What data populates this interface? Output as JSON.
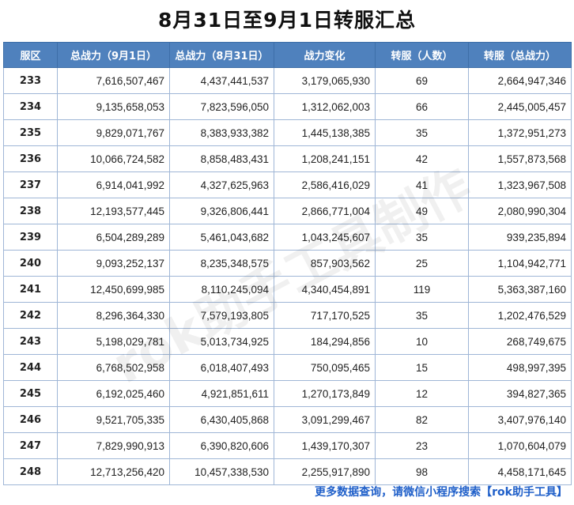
{
  "title": "8月31日至9月1日转服汇总",
  "table": {
    "headers": [
      "服区",
      "总战力（9月1日）",
      "总战力（8月31日）",
      "战力变化",
      "转服（人数）",
      "转服（总战力）"
    ],
    "rows": [
      [
        "233",
        "7,616,507,467",
        "4,437,441,537",
        "3,179,065,930",
        "69",
        "2,664,947,346"
      ],
      [
        "234",
        "9,135,658,053",
        "7,823,596,050",
        "1,312,062,003",
        "66",
        "2,445,005,457"
      ],
      [
        "235",
        "9,829,071,767",
        "8,383,933,382",
        "1,445,138,385",
        "35",
        "1,372,951,273"
      ],
      [
        "236",
        "10,066,724,582",
        "8,858,483,431",
        "1,208,241,151",
        "42",
        "1,557,873,568"
      ],
      [
        "237",
        "6,914,041,992",
        "4,327,625,963",
        "2,586,416,029",
        "41",
        "1,323,967,508"
      ],
      [
        "238",
        "12,193,577,445",
        "9,326,806,441",
        "2,866,771,004",
        "49",
        "2,080,990,304"
      ],
      [
        "239",
        "6,504,289,289",
        "5,461,043,682",
        "1,043,245,607",
        "35",
        "939,235,894"
      ],
      [
        "240",
        "9,093,252,137",
        "8,235,348,575",
        "857,903,562",
        "25",
        "1,104,942,771"
      ],
      [
        "241",
        "12,450,699,985",
        "8,110,245,094",
        "4,340,454,891",
        "119",
        "5,363,387,160"
      ],
      [
        "242",
        "8,296,364,330",
        "7,579,193,805",
        "717,170,525",
        "35",
        "1,202,476,529"
      ],
      [
        "243",
        "5,198,029,781",
        "5,013,734,925",
        "184,294,856",
        "10",
        "268,749,675"
      ],
      [
        "244",
        "6,768,502,958",
        "6,018,407,493",
        "750,095,465",
        "15",
        "498,997,395"
      ],
      [
        "245",
        "6,192,025,460",
        "4,921,851,611",
        "1,270,173,849",
        "12",
        "394,827,365"
      ],
      [
        "246",
        "9,521,705,335",
        "6,430,405,868",
        "3,091,299,467",
        "82",
        "3,407,976,140"
      ],
      [
        "247",
        "7,829,990,913",
        "6,390,820,606",
        "1,439,170,307",
        "23",
        "1,070,604,079"
      ],
      [
        "248",
        "12,713,256,420",
        "10,457,338,530",
        "2,255,917,890",
        "98",
        "4,458,171,645"
      ]
    ]
  },
  "watermark": "rok助手工具制作",
  "footer": "更多数据查询，请微信小程序搜索【rok助手工具】",
  "colors": {
    "header_bg": "#4f81bd",
    "border": "#9fb6d6",
    "footer_text": "#1f5fc9"
  }
}
